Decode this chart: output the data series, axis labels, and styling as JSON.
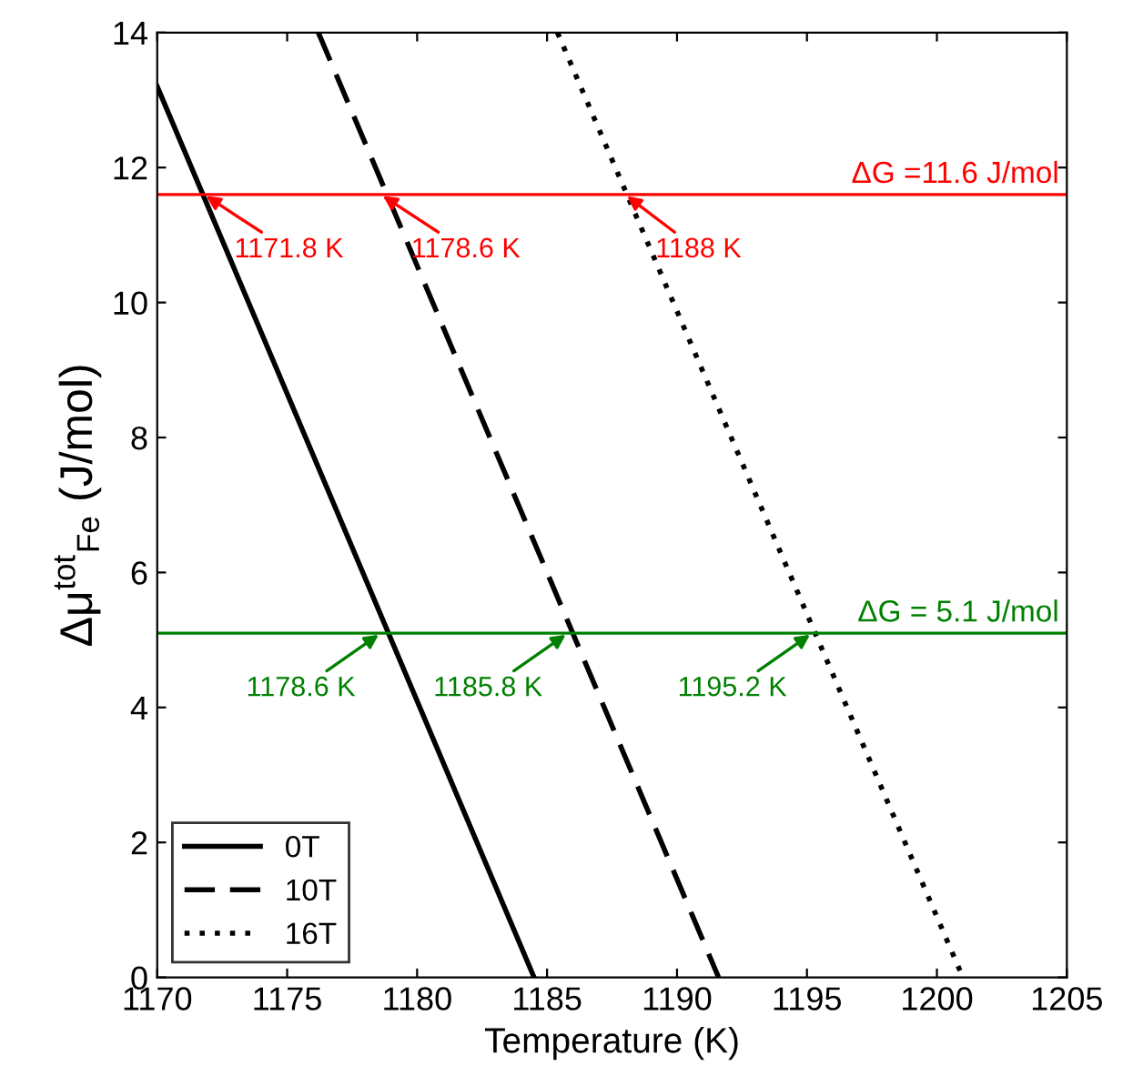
{
  "chart_data": {
    "type": "line",
    "xlabel": "Temperature (K)",
    "ylabel": "Δμ$^{tot}$$_{Fe}$ (J/mol)",
    "xlim": [
      1170,
      1205
    ],
    "xticks": [
      1170,
      1175,
      1180,
      1185,
      1190,
      1195,
      1200,
      1205
    ],
    "ylim": [
      0,
      14
    ],
    "yticks": [
      0,
      2,
      4,
      6,
      8,
      10,
      12,
      14
    ],
    "grid": false,
    "legend": "bottom left",
    "marker": "none",
    "series": [
      {
        "name": "0T",
        "color": "#000000",
        "line_style": "solid",
        "x": [
          1170,
          1184.5
        ],
        "values": [
          13.2,
          0
        ]
      },
      {
        "name": "10T",
        "color": "#000000",
        "line_style": "dashed",
        "x": [
          1176.2,
          1191.6
        ],
        "values": [
          14,
          0
        ]
      },
      {
        "name": "16T",
        "color": "#000000",
        "line_style": "dotted",
        "x": [
          1185.4,
          1201
        ],
        "values": [
          14,
          0
        ]
      }
    ],
    "ref_lines": [
      {
        "axis": "y",
        "value": 11.6,
        "label": "ΔG =11.6 J/mol",
        "color": "#ff0000"
      },
      {
        "axis": "y",
        "value": 5.1,
        "label": "ΔG = 5.1 J/mol",
        "color": "#008000"
      }
    ],
    "annotations": [
      {
        "text": "1171.8 K",
        "x": 1171.8,
        "y": 11.6
      },
      {
        "text": "1178.6 K",
        "x": 1178.6,
        "y": 11.6
      },
      {
        "text": "1188 K",
        "x": 1188,
        "y": 11.6
      },
      {
        "text": "1178.6 K",
        "x": 1178.6,
        "y": 5.1
      },
      {
        "text": "1185.8 K",
        "x": 1185.8,
        "y": 5.1
      },
      {
        "text": "1195.2 K",
        "x": 1195.2,
        "y": 5.1
      }
    ]
  }
}
